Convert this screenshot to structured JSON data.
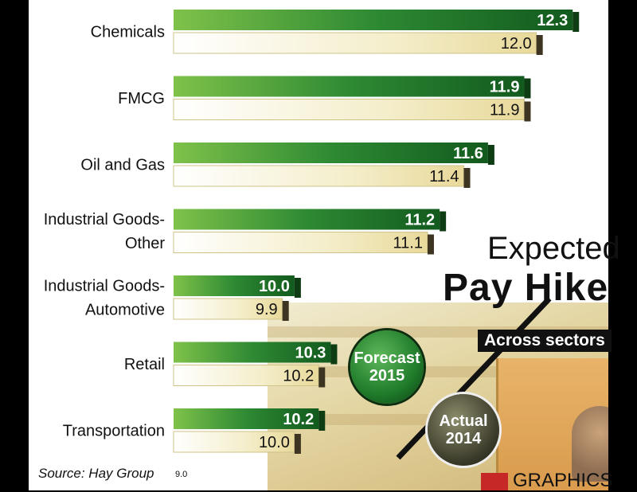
{
  "chart_data": {
    "type": "bar",
    "orientation": "horizontal",
    "title": "Expected",
    "title_line2": "Pay Hike",
    "subtitle": "Across sectors",
    "categories": [
      "Chemicals",
      "FMCG",
      "Oil and Gas",
      "Industrial Goods-Other",
      "Industrial Goods-Automotive",
      "Retail",
      "Transportation"
    ],
    "category_lines": [
      [
        "Chemicals"
      ],
      [
        "FMCG"
      ],
      [
        "Oil and Gas"
      ],
      [
        "Industrial Goods-",
        "Other"
      ],
      [
        "Industrial Goods-",
        "Automotive"
      ],
      [
        "Retail"
      ],
      [
        "Transportation"
      ]
    ],
    "series": [
      {
        "name": "Forecast 2015",
        "values": [
          12.3,
          11.9,
          11.6,
          11.2,
          10.0,
          10.3,
          10.2
        ],
        "color": "#1f7a2a"
      },
      {
        "name": "Actual 2014",
        "values": [
          12.0,
          11.9,
          11.4,
          11.1,
          9.9,
          10.2,
          10.0
        ],
        "color": "#f3ecc4"
      }
    ],
    "value_labels": {
      "Forecast 2015": [
        "12.3",
        "11.9",
        "11.6",
        "11.2",
        "10.0",
        "10.3",
        "10.2"
      ],
      "Actual 2014": [
        "12.0",
        "11.9",
        "11.4",
        "11.1",
        "9.9",
        "10.2",
        "10.0"
      ]
    },
    "xlim": [
      9.0,
      12.45
    ],
    "axis_min_label": "9.0",
    "legend": {
      "forecast": {
        "line1": "Forecast",
        "line2": "2015"
      },
      "actual": {
        "line1": "Actual",
        "line2": "2014"
      },
      "placement": "bottom-right"
    },
    "grid": false
  },
  "source": "Source: Hay Group",
  "brand": "GRAPHICS",
  "colors": {
    "forecast_green": "#1f7a2a",
    "actual_cream": "#f3ecc4",
    "background_frame": "#000000"
  }
}
